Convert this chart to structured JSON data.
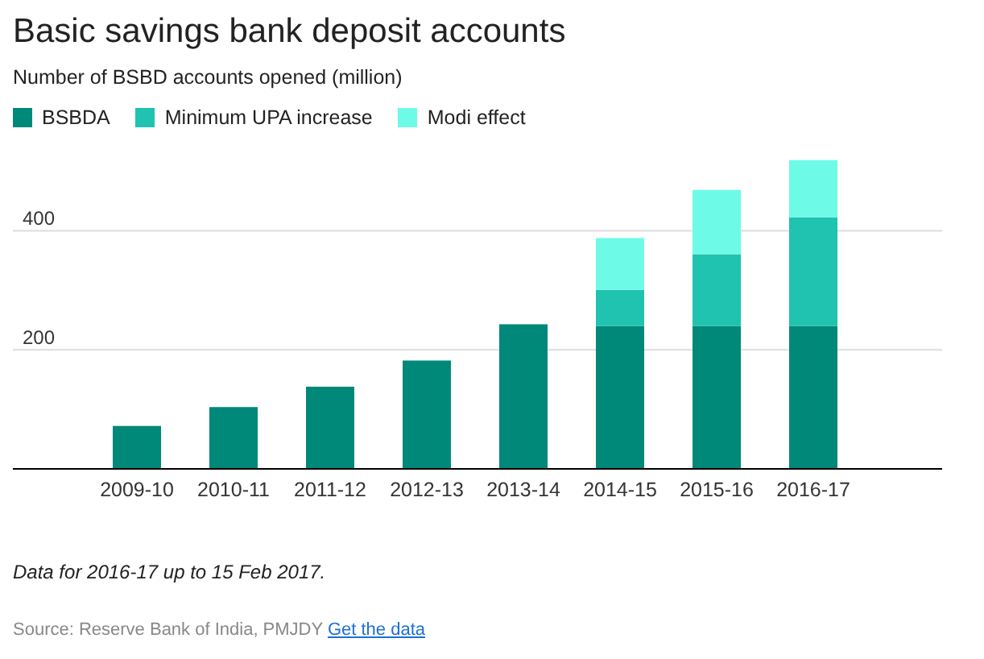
{
  "chart_data": {
    "type": "bar",
    "title": "Basic savings bank deposit accounts",
    "subtitle": "Number of BSBD accounts opened (million)",
    "categories": [
      "2009-10",
      "2010-11",
      "2011-12",
      "2012-13",
      "2013-14",
      "2014-15",
      "2015-16",
      "2016-17"
    ],
    "series": [
      {
        "name": "BSBDA",
        "color": "#008878",
        "values": [
          72,
          104,
          138,
          182,
          243,
          240,
          240,
          240
        ]
      },
      {
        "name": "Minimum UPA increase",
        "color": "#20c3b0",
        "values": [
          null,
          null,
          null,
          null,
          null,
          61,
          121,
          183
        ]
      },
      {
        "name": "Modi effect",
        "color": "#6dfbe8",
        "values": [
          null,
          null,
          null,
          null,
          null,
          87,
          108,
          96
        ]
      }
    ],
    "stacked": true,
    "ylim": [
      0,
      520
    ],
    "yticks": [
      200,
      400
    ],
    "grid": "y",
    "legend": "top left",
    "annotations": [
      "Data for 2016-17 up to 15 Feb 2017.",
      "Source: Reserve Bank of India, PMJDY",
      "Get the data"
    ]
  }
}
